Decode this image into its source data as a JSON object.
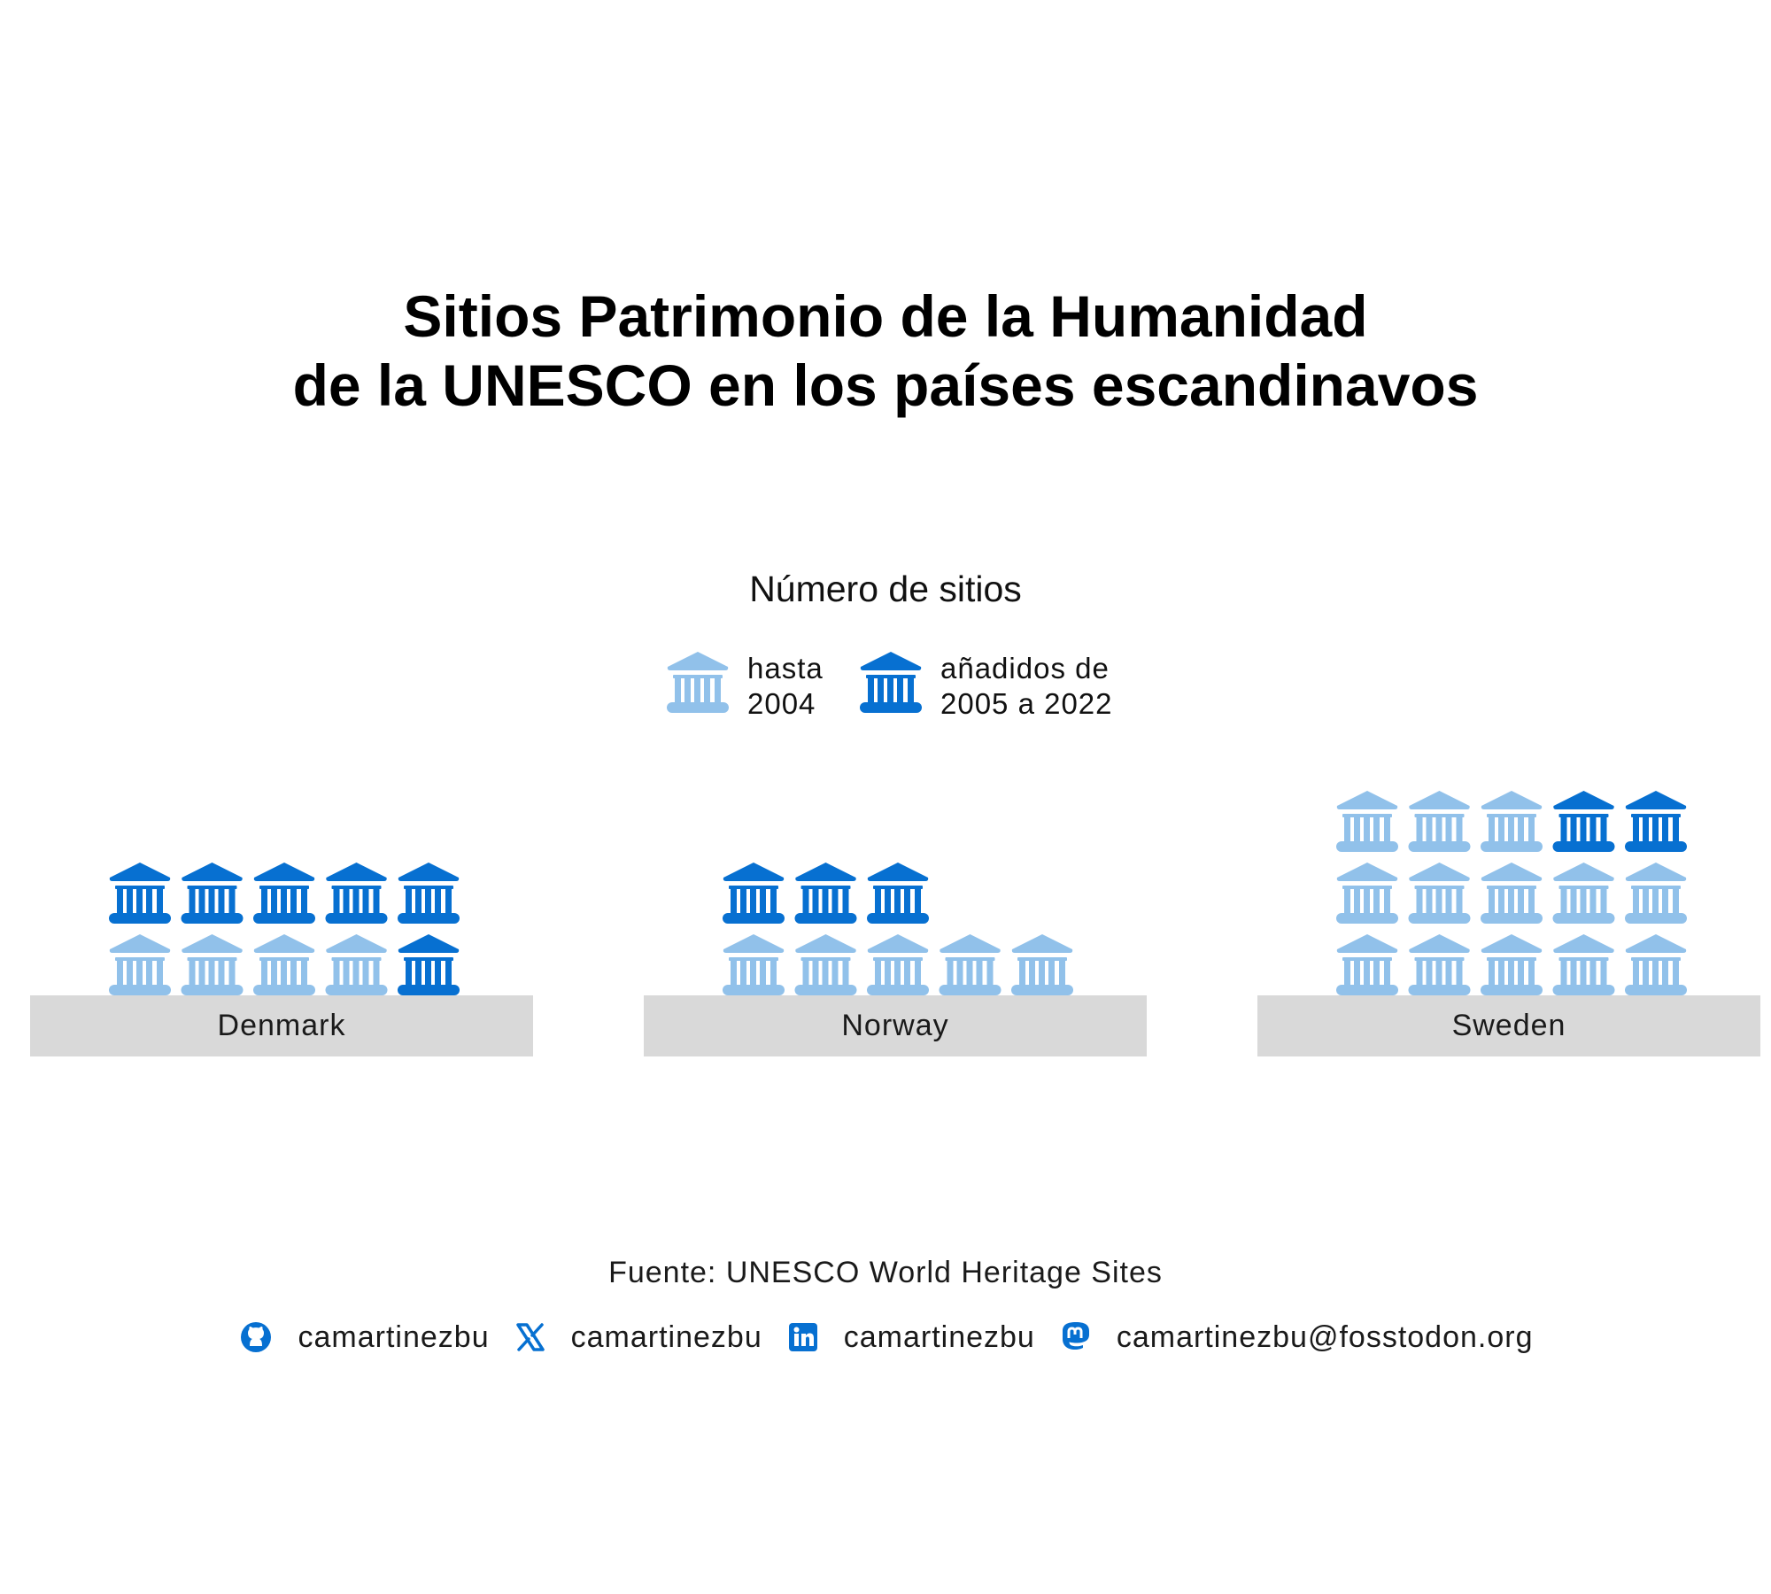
{
  "title": {
    "line1": "Sitios Patrimonio de la Humanidad",
    "line2": "de la UNESCO en los países escandinavos"
  },
  "legend": {
    "title": "Número de sitios",
    "items": [
      {
        "line1": "hasta",
        "line2": "2004",
        "color": "#91c1ea",
        "icon": "landmark-icon"
      },
      {
        "line1": "añadidos de",
        "line2": "2005 a 2022",
        "color": "#0770d1",
        "icon": "landmark-icon"
      }
    ]
  },
  "chart_data": {
    "type": "pictogram",
    "series": [
      {
        "name": "hasta 2004",
        "color": "#91c1ea"
      },
      {
        "name": "añadidos de 2005 a 2022",
        "color": "#0770d1"
      }
    ],
    "icons_per_row": 5,
    "countries": [
      {
        "name": "Denmark",
        "until_2004": 4,
        "added_2005_2022": 6
      },
      {
        "name": "Norway",
        "until_2004": 5,
        "added_2005_2022": 3
      },
      {
        "name": "Sweden",
        "until_2004": 13,
        "added_2005_2022": 2
      }
    ]
  },
  "footer": {
    "source": "Fuente: UNESCO World Heritage Sites",
    "social": [
      {
        "icon": "github-icon",
        "handle": "camartinezbu"
      },
      {
        "icon": "x-icon",
        "handle": "camartinezbu"
      },
      {
        "icon": "linkedin-icon",
        "handle": "camartinezbu"
      },
      {
        "icon": "mastodon-icon",
        "handle": "camartinezbu@fosstodon.org"
      }
    ],
    "icon_color": "#0770d1"
  }
}
